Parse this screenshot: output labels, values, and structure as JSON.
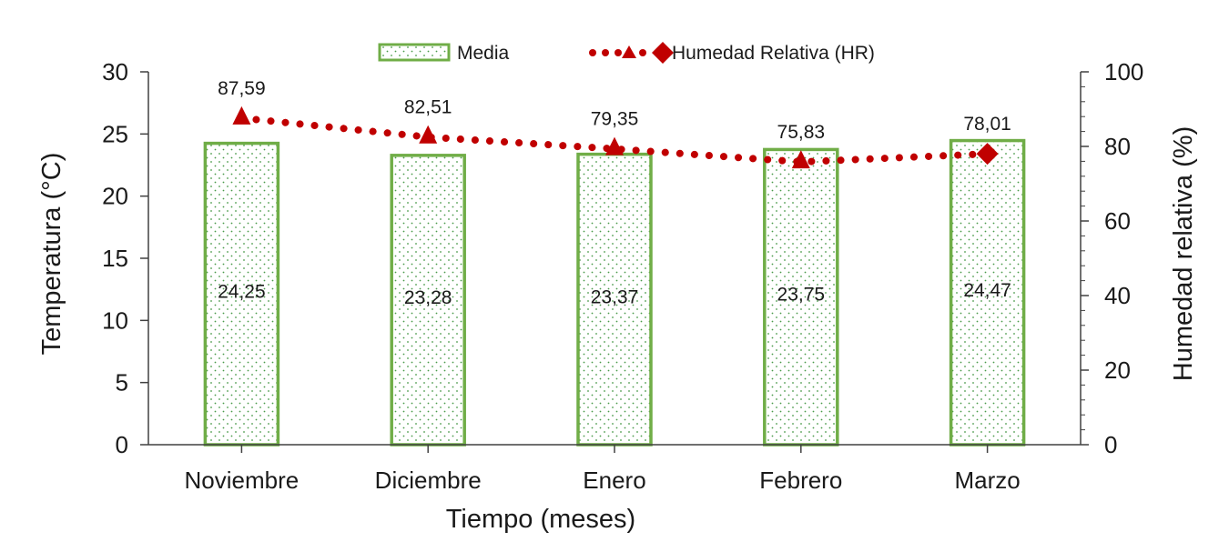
{
  "chart_data": {
    "type": "bar",
    "categories": [
      "Noviembre",
      "Diciembre",
      "Enero",
      "Febrero",
      "Marzo"
    ],
    "series": [
      {
        "name": "Media",
        "type": "bar",
        "axis": "left",
        "values": [
          24.25,
          23.28,
          23.37,
          23.75,
          24.47
        ],
        "labels": [
          "24,25",
          "23,28",
          "23,37",
          "23,75",
          "24,47"
        ],
        "color": "#70ad47"
      },
      {
        "name": "Humedad Relativa (HR)",
        "type": "line",
        "axis": "right",
        "values": [
          87.59,
          82.51,
          79.35,
          75.83,
          78.01
        ],
        "labels": [
          "87,59",
          "82,51",
          "79,35",
          "75,83",
          "78,01"
        ],
        "color": "#c00000"
      }
    ],
    "xlabel": "Tiempo (meses)",
    "ylabel": "Temperatura (°C)",
    "y2label": "Humedad relativa (%)",
    "ylim": [
      0,
      30
    ],
    "y2lim": [
      0,
      100
    ],
    "yticks": [
      "0",
      "5",
      "10",
      "15",
      "20",
      "25",
      "30"
    ],
    "y2ticks": [
      "0",
      "20",
      "40",
      "60",
      "80",
      "100"
    ],
    "grid": false,
    "legend_position": "top-center"
  }
}
